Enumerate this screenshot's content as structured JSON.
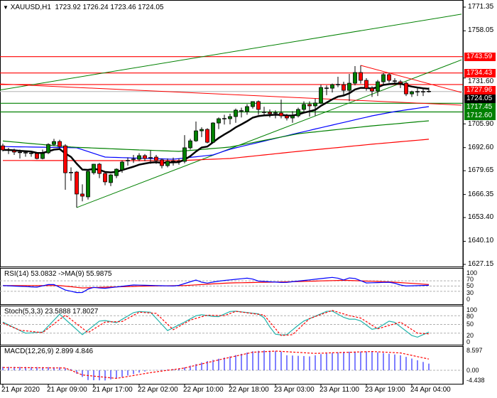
{
  "header": {
    "symbol": "XAUUSD,H1",
    "ohlc": "1723.92 1726.24 1723.46 1724.05"
  },
  "colors": {
    "bull": "#008000",
    "bear": "#ff0000",
    "ema": "#000000",
    "ma_blue": "#0000ff",
    "ma_green": "#008000",
    "ma_red": "#ff0000",
    "rsi": "#0000ff",
    "rsi_ma": "#ff0000",
    "stoch_main": "#20b2aa",
    "stoch_signal": "#ff0000",
    "macd_hist": "#0000ff",
    "macd_signal": "#ff0000"
  },
  "price_axis": {
    "ticks": [
      "1771.35",
      "1758.05",
      "1731.60",
      "1705.90",
      "1692.60",
      "1679.65",
      "1666.35",
      "1653.40",
      "1640.10",
      "1627.15"
    ]
  },
  "levels": [
    {
      "label": "1743.59",
      "price": 1743.59,
      "color": "#ff0000"
    },
    {
      "label": "1734.43",
      "price": 1734.43,
      "color": "#ff0000"
    },
    {
      "label": "1727.96",
      "price": 1727.96,
      "color": "#ff0000"
    },
    {
      "label": "1724.05",
      "price": 1724.05,
      "color": "#000000",
      "current": true
    },
    {
      "label": "1717.45",
      "price": 1717.45,
      "color": "#008000"
    },
    {
      "label": "1712.60",
      "price": 1712.6,
      "color": "#008000"
    }
  ],
  "x_axis": {
    "labels": [
      "21 Apr 2020",
      "21 Apr 09:00",
      "21 Apr 17:00",
      "22 Apr 02:00",
      "22 Apr 10:00",
      "22 Apr 18:00",
      "23 Apr 03:00",
      "23 Apr 11:00",
      "23 Apr 19:00",
      "24 Apr 04:00"
    ],
    "label_bar_index": [
      0,
      8,
      16,
      24,
      32,
      40,
      48,
      56,
      64,
      72
    ]
  },
  "chart_data": {
    "type": "candlestick",
    "ylim": [
      1627.15,
      1771.35
    ],
    "candles": [
      [
        1693.6,
        1694.8,
        1690.5,
        1691.3
      ],
      [
        1691.3,
        1692.5,
        1689.0,
        1691.2
      ],
      [
        1690.9,
        1692.0,
        1688.5,
        1690.1
      ],
      [
        1689.9,
        1691.5,
        1686.5,
        1689.7
      ],
      [
        1689.7,
        1691.0,
        1687.5,
        1689.6
      ],
      [
        1689.4,
        1690.5,
        1687.5,
        1689.3
      ],
      [
        1689.3,
        1690.0,
        1686.0,
        1686.5
      ],
      [
        1686.5,
        1691.5,
        1686.0,
        1689.3
      ],
      [
        1689.7,
        1695.0,
        1689.0,
        1694.4
      ],
      [
        1694.4,
        1697.5,
        1693.5,
        1696.0
      ],
      [
        1696.0,
        1697.0,
        1692.0,
        1693.2
      ],
      [
        1693.6,
        1694.5,
        1669.0,
        1678.5
      ],
      [
        1678.6,
        1681.5,
        1674.0,
        1678.5
      ],
      [
        1678.9,
        1679.5,
        1659.0,
        1666.6
      ],
      [
        1666.6,
        1672.0,
        1662.5,
        1665.4
      ],
      [
        1665.0,
        1680.5,
        1663.5,
        1679.3
      ],
      [
        1678.5,
        1683.5,
        1677.5,
        1683.3
      ],
      [
        1683.3,
        1684.0,
        1675.5,
        1678.1
      ],
      [
        1678.1,
        1679.0,
        1671.5,
        1673.4
      ],
      [
        1673.0,
        1677.8,
        1671.0,
        1677.3
      ],
      [
        1676.9,
        1681.0,
        1675.5,
        1680.5
      ],
      [
        1680.1,
        1685.5,
        1678.5,
        1684.5
      ],
      [
        1685.3,
        1687.0,
        1682.5,
        1685.3
      ],
      [
        1686.1,
        1688.5,
        1684.0,
        1686.1
      ],
      [
        1686.1,
        1689.5,
        1685.0,
        1688.1
      ],
      [
        1688.1,
        1689.0,
        1685.0,
        1686.5
      ],
      [
        1686.9,
        1691.0,
        1683.5,
        1686.9
      ],
      [
        1687.3,
        1688.5,
        1683.5,
        1685.3
      ],
      [
        1685.7,
        1686.5,
        1681.0,
        1682.5
      ],
      [
        1682.5,
        1686.5,
        1681.5,
        1684.9
      ],
      [
        1684.9,
        1687.0,
        1682.5,
        1684.9
      ],
      [
        1684.9,
        1686.5,
        1683.0,
        1684.9
      ],
      [
        1684.9,
        1699.6,
        1683.8,
        1692.5
      ],
      [
        1692.5,
        1697.5,
        1691.5,
        1696.4
      ],
      [
        1696.4,
        1707.2,
        1695.8,
        1702.0
      ],
      [
        1702.0,
        1704.0,
        1698.5,
        1702.8
      ],
      [
        1702.8,
        1703.5,
        1695.0,
        1695.6
      ],
      [
        1695.6,
        1706.8,
        1695.2,
        1706.4
      ],
      [
        1706.4,
        1709.5,
        1703.0,
        1708.8
      ],
      [
        1708.8,
        1711.0,
        1705.5,
        1708.8
      ],
      [
        1708.8,
        1711.6,
        1705.6,
        1710.0
      ],
      [
        1710.0,
        1714.5,
        1706.5,
        1713.6
      ],
      [
        1713.2,
        1715.0,
        1709.5,
        1713.2
      ],
      [
        1712.8,
        1717.0,
        1711.0,
        1715.6
      ],
      [
        1715.6,
        1718.5,
        1714.5,
        1718.4
      ],
      [
        1718.4,
        1719.0,
        1711.0,
        1714.0
      ],
      [
        1712.4,
        1715.5,
        1710.5,
        1712.4
      ],
      [
        1712.4,
        1714.0,
        1709.5,
        1711.6
      ],
      [
        1712.0,
        1713.5,
        1709.0,
        1712.0
      ],
      [
        1712.0,
        1719.5,
        1709.0,
        1710.4
      ],
      [
        1710.4,
        1711.5,
        1707.8,
        1709.2
      ],
      [
        1709.2,
        1713.0,
        1706.5,
        1710.4
      ],
      [
        1710.4,
        1715.0,
        1709.5,
        1714.0
      ],
      [
        1714.0,
        1718.5,
        1712.0,
        1716.8
      ],
      [
        1716.8,
        1718.5,
        1710.0,
        1716.0
      ],
      [
        1716.0,
        1720.0,
        1710.5,
        1717.6
      ],
      [
        1717.6,
        1727.9,
        1717.0,
        1726.3
      ],
      [
        1725.9,
        1727.5,
        1722.0,
        1725.9
      ],
      [
        1725.9,
        1728.5,
        1723.5,
        1727.9
      ],
      [
        1727.9,
        1732.3,
        1726.5,
        1727.9
      ],
      [
        1727.9,
        1729.5,
        1722.0,
        1724.7
      ],
      [
        1724.7,
        1733.9,
        1718.5,
        1728.7
      ],
      [
        1728.7,
        1738.3,
        1727.5,
        1734.7
      ],
      [
        1734.7,
        1738.7,
        1728.5,
        1730.3
      ],
      [
        1730.3,
        1731.5,
        1724.5,
        1725.9
      ],
      [
        1725.9,
        1727.0,
        1721.0,
        1724.3
      ],
      [
        1724.3,
        1730.5,
        1721.5,
        1729.5
      ],
      [
        1729.5,
        1734.5,
        1727.5,
        1733.5
      ],
      [
        1733.5,
        1734.5,
        1729.0,
        1730.3
      ],
      [
        1729.9,
        1731.5,
        1728.0,
        1729.9
      ],
      [
        1729.5,
        1730.5,
        1726.0,
        1728.7
      ],
      [
        1728.7,
        1729.5,
        1721.5,
        1722.7
      ],
      [
        1722.7,
        1724.5,
        1721.0,
        1723.9
      ],
      [
        1723.9,
        1726.0,
        1721.5,
        1723.9
      ],
      [
        1723.9,
        1725.5,
        1721.5,
        1723.9
      ],
      [
        1723.92,
        1726.24,
        1723.46,
        1724.05
      ]
    ],
    "moving_averages": {
      "blue": [
        [
          0,
          1693.2
        ],
        [
          13,
          1692.5
        ],
        [
          18,
          1687.3
        ],
        [
          30,
          1686.1
        ],
        [
          37,
          1688.5
        ],
        [
          40,
          1691.7
        ],
        [
          52,
          1700.8
        ],
        [
          65,
          1710.4
        ],
        [
          69,
          1712.8
        ],
        [
          75,
          1715.6
        ]
      ],
      "green": [
        [
          0,
          1696.3
        ],
        [
          12,
          1692.9
        ],
        [
          24,
          1691.3
        ],
        [
          31,
          1690.5
        ],
        [
          40,
          1692.9
        ],
        [
          52,
          1700.4
        ],
        [
          65,
          1704.8
        ],
        [
          75,
          1707.6
        ]
      ],
      "red": [
        [
          0,
          1685.4
        ],
        [
          18,
          1685.3
        ],
        [
          31,
          1685.3
        ],
        [
          40,
          1686.5
        ],
        [
          52,
          1690.5
        ],
        [
          65,
          1694.5
        ],
        [
          75,
          1697.3
        ]
      ]
    },
    "trendlines": [
      {
        "color": "#008000",
        "from": [
          -0.5,
          1724.9
        ],
        "to": [
          80.75,
          1767.4
        ]
      },
      {
        "color": "#008000",
        "from": [
          13,
          1659.0
        ],
        "to": [
          80.75,
          1741.8
        ]
      },
      {
        "color": "#ff0000",
        "from": [
          -0.5,
          1728.3
        ],
        "to": [
          80.75,
          1716.4
        ]
      },
      {
        "color": "#ff0000",
        "from": [
          63,
          1738.7
        ],
        "to": [
          80.75,
          1723.5
        ]
      }
    ],
    "indicators": {
      "rsi": {
        "label": "RSI(14) 53.0832  ->MA(9) 55.9875",
        "axis": [
          "100",
          "70",
          "50",
          "30",
          "0"
        ],
        "levels": [
          70,
          50,
          30
        ],
        "line": [
          [
            0,
            52
          ],
          [
            6,
            46
          ],
          [
            8.7,
            59
          ],
          [
            11,
            35
          ],
          [
            13.7,
            22
          ],
          [
            15.6,
            46
          ],
          [
            17.8,
            41
          ],
          [
            23,
            54
          ],
          [
            30.6,
            50
          ],
          [
            34,
            73
          ],
          [
            35.6,
            60
          ],
          [
            38.4,
            70
          ],
          [
            43.4,
            81
          ],
          [
            45,
            69
          ],
          [
            49.5,
            63
          ],
          [
            55,
            76
          ],
          [
            58.4,
            84
          ],
          [
            60,
            73
          ],
          [
            61.4,
            84
          ],
          [
            64,
            62
          ],
          [
            68.4,
            65
          ],
          [
            70.6,
            50
          ],
          [
            75,
            53.1
          ]
        ],
        "ma": [
          [
            0,
            52
          ],
          [
            10,
            52
          ],
          [
            14,
            43
          ],
          [
            25,
            50
          ],
          [
            32,
            52
          ],
          [
            40,
            62
          ],
          [
            50,
            66
          ],
          [
            60,
            72
          ],
          [
            68,
            66
          ],
          [
            75,
            56.0
          ]
        ]
      },
      "stoch": {
        "label": "Stoch(5,3,3) 23.5888 17.8027",
        "axis": [
          "100",
          "80",
          "50",
          "20",
          "0"
        ],
        "levels": [
          80,
          50,
          20
        ],
        "main": [
          [
            0,
            58
          ],
          [
            4,
            20
          ],
          [
            7,
            24
          ],
          [
            10,
            85
          ],
          [
            14,
            15
          ],
          [
            17.3,
            66
          ],
          [
            20,
            56
          ],
          [
            23.4,
            95
          ],
          [
            26,
            92
          ],
          [
            29,
            29
          ],
          [
            31.7,
            55
          ],
          [
            34.5,
            85
          ],
          [
            37.8,
            75
          ],
          [
            40.3,
            97
          ],
          [
            45.6,
            85
          ],
          [
            47.8,
            17
          ],
          [
            49.8,
            12
          ],
          [
            52.8,
            60
          ],
          [
            57.6,
            100
          ],
          [
            60.6,
            68
          ],
          [
            62.6,
            68
          ],
          [
            65.3,
            29
          ],
          [
            68.4,
            66
          ],
          [
            72.6,
            3
          ],
          [
            75,
            23.6
          ]
        ],
        "signal": [
          [
            0,
            55
          ],
          [
            3,
            30
          ],
          [
            7,
            22
          ],
          [
            11,
            82
          ],
          [
            15,
            22
          ],
          [
            18,
            58
          ],
          [
            21,
            60
          ],
          [
            24,
            92
          ],
          [
            27,
            88
          ],
          [
            30,
            32
          ],
          [
            33,
            65
          ],
          [
            36,
            82
          ],
          [
            39,
            80
          ],
          [
            41,
            95
          ],
          [
            46,
            82
          ],
          [
            49,
            12
          ],
          [
            51,
            15
          ],
          [
            54,
            70
          ],
          [
            58,
            98
          ],
          [
            61,
            80
          ],
          [
            63,
            72
          ],
          [
            66,
            35
          ],
          [
            70,
            58
          ],
          [
            73,
            20
          ],
          [
            75,
            17.8
          ]
        ]
      },
      "macd": {
        "label": "MACD(12,26,9) 2.899 4.846",
        "axis": [
          "8.597",
          "0.00",
          "-4.438"
        ],
        "range": [
          -4.438,
          8.597
        ],
        "histogram": [
          [
            0,
            1.5
          ],
          [
            10,
            1.3
          ],
          [
            12,
            0.5
          ],
          [
            13,
            -1.5
          ],
          [
            15,
            -4.2
          ],
          [
            18,
            -4.4
          ],
          [
            20,
            -3.5
          ],
          [
            24,
            -1.0
          ],
          [
            26,
            0
          ],
          [
            31,
            0.5
          ],
          [
            33,
            2
          ],
          [
            36,
            4
          ],
          [
            40,
            6
          ],
          [
            44,
            8.2
          ],
          [
            46,
            8.6
          ],
          [
            49,
            8
          ],
          [
            50,
            6.5
          ],
          [
            54,
            6
          ],
          [
            56,
            7
          ],
          [
            60,
            8
          ],
          [
            65,
            8.1
          ],
          [
            70,
            6.5
          ],
          [
            75,
            2.899
          ]
        ],
        "signal": [
          [
            0,
            1.2
          ],
          [
            11,
            1.0
          ],
          [
            14,
            -2
          ],
          [
            20,
            -3.5
          ],
          [
            26,
            -1
          ],
          [
            32,
            1
          ],
          [
            38,
            4.5
          ],
          [
            44,
            7.8
          ],
          [
            48,
            8.3
          ],
          [
            55,
            7.3
          ],
          [
            65,
            8.1
          ],
          [
            70,
            7.5
          ],
          [
            75,
            4.846
          ]
        ]
      }
    }
  }
}
